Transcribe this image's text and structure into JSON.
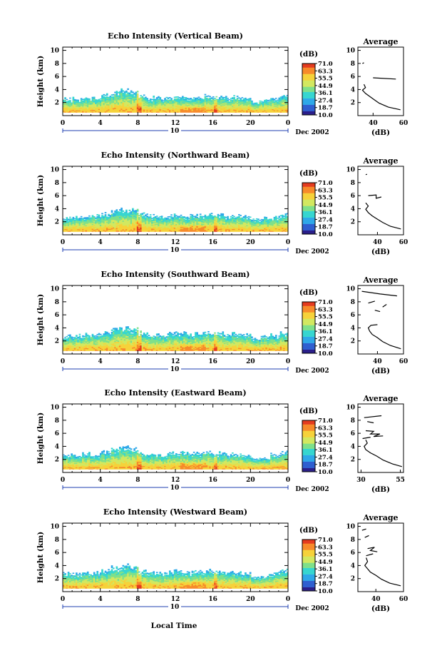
{
  "figure": {
    "xlabel": "Local Time",
    "date_label": "Dec 2002",
    "colorbar_unit": "(dB)",
    "colorbar_ticks": [
      "71.0",
      "63.3",
      "55.5",
      "44.9",
      "36.1",
      "27.4",
      "18.7",
      "10.0"
    ],
    "colors": {
      "colormap": [
        "#2b1f8a",
        "#2f5fd0",
        "#2fa8e8",
        "#36d6d0",
        "#7fe08a",
        "#d2e860",
        "#f6d23a",
        "#f78a2a",
        "#e43a1e"
      ],
      "line": "#000000",
      "day_marker": "#1f3fb0"
    }
  },
  "chart_data": [
    {
      "type": "heatmap",
      "title": "Echo Intensity (Vertical Beam)",
      "ylabel": "Height (km)",
      "xlabel": "Local Time",
      "x_ticks": [
        "0",
        "4",
        "8",
        "12",
        "16",
        "20",
        "0"
      ],
      "xlim": [
        0,
        24
      ],
      "y_ticks": [
        "2",
        "4",
        "6",
        "8",
        "10"
      ],
      "ylim": [
        0,
        10.5
      ],
      "day_marker": "10",
      "date": "Dec 2002",
      "colorbar": {
        "unit": "(dB)",
        "range": [
          10.0,
          71.0
        ]
      },
      "cloud_top_km": [
        2.6,
        2.6,
        2.8,
        2.8,
        3.2,
        3.6,
        3.9,
        3.7,
        3.1,
        2.8,
        2.7,
        2.9,
        3.0,
        2.9,
        3.0,
        3.1,
        3.0,
        2.8,
        2.9,
        2.7,
        2.2,
        2.4,
        2.7,
        3.2
      ],
      "average": {
        "title": "Average",
        "xlabel": "(dB)",
        "x_ticks": [
          "40",
          "60"
        ],
        "xlim": [
          30,
          60
        ],
        "y_ticks": [
          "2",
          "4",
          "6",
          "8",
          "10"
        ],
        "ylim": [
          0,
          10.5
        ],
        "profile": [
          [
            58,
            0.9
          ],
          [
            50,
            1.3
          ],
          [
            44,
            1.9
          ],
          [
            41,
            2.4
          ],
          [
            38,
            2.9
          ],
          [
            35,
            3.4
          ],
          [
            33,
            3.9
          ],
          [
            35,
            4.3
          ],
          [
            34,
            4.8
          ]
        ],
        "segments": [
          [
            [
              40,
              5.8
            ],
            [
              55,
              5.6
            ]
          ],
          [
            [
              33,
              8.0
            ],
            [
              34,
              8.1
            ]
          ]
        ]
      }
    },
    {
      "type": "heatmap",
      "title": "Echo Intensity (Northward Beam)",
      "ylabel": "Height (km)",
      "xlabel": "Local Time",
      "x_ticks": [
        "0",
        "4",
        "8",
        "12",
        "16",
        "20",
        "0"
      ],
      "xlim": [
        0,
        24
      ],
      "y_ticks": [
        "2",
        "4",
        "6",
        "8",
        "10"
      ],
      "ylim": [
        0,
        10.5
      ],
      "day_marker": "10",
      "date": "Dec 2002",
      "colorbar": {
        "unit": "(dB)",
        "range": [
          10.0,
          71.0
        ]
      },
      "cloud_top_km": [
        2.7,
        2.7,
        2.9,
        2.9,
        3.3,
        3.7,
        4.0,
        3.8,
        3.2,
        2.9,
        2.8,
        3.0,
        3.1,
        3.0,
        3.1,
        3.2,
        3.1,
        2.9,
        3.0,
        2.8,
        2.3,
        2.5,
        2.8,
        3.3
      ],
      "average": {
        "title": "Average",
        "xlabel": "(dB)",
        "x_ticks": [
          "40",
          "60"
        ],
        "xlim": [
          25,
          60
        ],
        "y_ticks": [
          "2",
          "4",
          "6",
          "8",
          "10"
        ],
        "ylim": [
          0,
          10.5
        ],
        "profile": [
          [
            58,
            0.9
          ],
          [
            50,
            1.3
          ],
          [
            44,
            1.9
          ],
          [
            40,
            2.4
          ],
          [
            36,
            2.9
          ],
          [
            33,
            3.4
          ],
          [
            31,
            3.9
          ],
          [
            33,
            4.4
          ],
          [
            31,
            4.9
          ]
        ],
        "segments": [
          [
            [
              33,
              6.0
            ],
            [
              39,
              6.1
            ],
            [
              39,
              5.6
            ],
            [
              43,
              5.8
            ]
          ],
          [
            [
              31,
              9.2
            ],
            [
              32,
              9.3
            ]
          ]
        ]
      }
    },
    {
      "type": "heatmap",
      "title": "Echo Intensity (Southward Beam)",
      "ylabel": "Height (km)",
      "xlabel": "Local Time",
      "x_ticks": [
        "0",
        "4",
        "8",
        "12",
        "16",
        "20",
        "0"
      ],
      "xlim": [
        0,
        24
      ],
      "y_ticks": [
        "2",
        "4",
        "6",
        "8",
        "10"
      ],
      "ylim": [
        0,
        10.5
      ],
      "day_marker": "10",
      "date": "Dec 2002",
      "colorbar": {
        "unit": "(dB)",
        "range": [
          10.0,
          71.0
        ]
      },
      "cloud_top_km": [
        2.8,
        2.8,
        3.0,
        3.0,
        3.4,
        3.8,
        4.1,
        3.9,
        3.3,
        3.0,
        2.9,
        3.1,
        3.2,
        3.1,
        3.2,
        3.3,
        3.2,
        3.0,
        3.1,
        2.9,
        2.4,
        2.6,
        2.9,
        3.4
      ],
      "average": {
        "title": "Average",
        "xlabel": "(dB)",
        "x_ticks": [
          "40",
          "60"
        ],
        "xlim": [
          25,
          60
        ],
        "y_ticks": [
          "2",
          "4",
          "6",
          "8",
          "10"
        ],
        "ylim": [
          0,
          10.5
        ],
        "profile": [
          [
            58,
            0.8
          ],
          [
            50,
            1.3
          ],
          [
            44,
            1.9
          ],
          [
            40,
            2.5
          ],
          [
            36,
            3.0
          ],
          [
            34,
            3.5
          ],
          [
            33,
            4.0
          ],
          [
            35,
            4.4
          ],
          [
            40,
            4.5
          ]
        ],
        "segments": [
          [
            [
              28,
              9.6
            ],
            [
              42,
              9.2
            ],
            [
              55,
              8.9
            ]
          ],
          [
            [
              38,
              6.7
            ],
            [
              42,
              6.5
            ]
          ],
          [
            [
              44,
              7.2
            ],
            [
              47,
              7.6
            ]
          ],
          [
            [
              33,
              7.8
            ],
            [
              38,
              8.1
            ]
          ]
        ]
      }
    },
    {
      "type": "heatmap",
      "title": "Echo Intensity (Eastward Beam)",
      "ylabel": "Height (km)",
      "xlabel": "Local Time",
      "x_ticks": [
        "0",
        "4",
        "8",
        "12",
        "16",
        "20",
        "0"
      ],
      "xlim": [
        0,
        24
      ],
      "y_ticks": [
        "2",
        "4",
        "6",
        "8",
        "10"
      ],
      "ylim": [
        0,
        10.5
      ],
      "day_marker": "10",
      "date": "Dec 2002",
      "colorbar": {
        "unit": "(dB)",
        "range": [
          10.0,
          71.0
        ]
      },
      "cloud_top_km": [
        2.7,
        2.6,
        2.9,
        2.8,
        3.2,
        3.7,
        4.0,
        3.8,
        3.1,
        2.9,
        2.7,
        3.0,
        3.1,
        2.9,
        3.0,
        3.2,
        3.0,
        2.8,
        2.9,
        2.7,
        2.3,
        2.4,
        2.8,
        3.3
      ],
      "average": {
        "title": "Average",
        "xlabel": "(dB)",
        "x_ticks": [
          "30",
          "55"
        ],
        "xlim": [
          28,
          57
        ],
        "y_ticks": [
          "2",
          "4",
          "6",
          "8",
          "10"
        ],
        "ylim": [
          0,
          10.5
        ],
        "profile": [
          [
            56,
            0.9
          ],
          [
            50,
            1.3
          ],
          [
            44,
            1.9
          ],
          [
            40,
            2.5
          ],
          [
            36,
            3.0
          ],
          [
            33,
            3.5
          ],
          [
            32,
            4.0
          ],
          [
            34,
            4.5
          ],
          [
            33,
            5.0
          ]
        ],
        "segments": [
          [
            [
              32,
              8.4
            ],
            [
              43,
              8.7
            ]
          ],
          [
            [
              33,
              6.4
            ],
            [
              38,
              6.3
            ],
            [
              36,
              5.9
            ],
            [
              42,
              5.9
            ],
            [
              38,
              5.5
            ],
            [
              44,
              5.6
            ]
          ],
          [
            [
              31,
              5.2
            ],
            [
              36,
              5.4
            ]
          ],
          [
            [
              34,
              7.8
            ],
            [
              38,
              7.6
            ]
          ]
        ]
      }
    },
    {
      "type": "heatmap",
      "title": "Echo Intensity (Westward Beam)",
      "ylabel": "Height (km)",
      "xlabel": "Local Time",
      "x_ticks": [
        "0",
        "4",
        "8",
        "12",
        "16",
        "20",
        "0"
      ],
      "xlim": [
        0,
        24
      ],
      "y_ticks": [
        "2",
        "4",
        "6",
        "8",
        "10"
      ],
      "ylim": [
        0,
        10.5
      ],
      "day_marker": "10",
      "date": "Dec 2002",
      "colorbar": {
        "unit": "(dB)",
        "range": [
          10.0,
          71.0
        ]
      },
      "cloud_top_km": [
        2.8,
        2.7,
        3.0,
        2.9,
        3.3,
        3.8,
        4.1,
        3.9,
        3.2,
        3.0,
        2.8,
        3.1,
        3.2,
        3.0,
        3.1,
        3.3,
        3.1,
        2.9,
        3.0,
        2.8,
        2.4,
        2.5,
        2.9,
        3.4
      ],
      "average": {
        "title": "Average",
        "xlabel": "(dB)",
        "x_ticks": [
          "40",
          "60"
        ],
        "xlim": [
          27,
          60
        ],
        "y_ticks": [
          "2",
          "4",
          "6",
          "8",
          "10"
        ],
        "ylim": [
          0,
          10.5
        ],
        "profile": [
          [
            58,
            0.9
          ],
          [
            50,
            1.3
          ],
          [
            44,
            1.9
          ],
          [
            40,
            2.5
          ],
          [
            36,
            3.0
          ],
          [
            34,
            3.5
          ],
          [
            32,
            4.0
          ],
          [
            34,
            4.6
          ],
          [
            33,
            5.2
          ]
        ],
        "segments": [
          [
            [
              32,
              8.3
            ],
            [
              35,
              8.6
            ]
          ],
          [
            [
              34,
              6.6
            ],
            [
              39,
              6.8
            ],
            [
              36,
              6.3
            ],
            [
              41,
              6.1
            ]
          ],
          [
            [
              33,
              5.5
            ],
            [
              38,
              5.8
            ]
          ],
          [
            [
              30,
              9.4
            ],
            [
              33,
              9.6
            ]
          ]
        ]
      }
    }
  ]
}
